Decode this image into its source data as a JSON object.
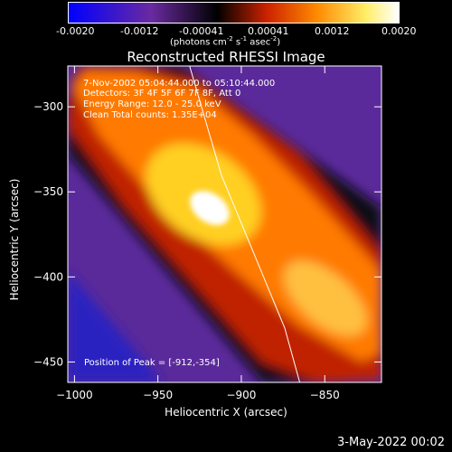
{
  "figure": {
    "footer_date": "3-May-2022 00:02"
  },
  "colorbar": {
    "ticks": [
      "-0.0020",
      "-0.0012",
      "-0.00041",
      "0.00041",
      "0.0012",
      "0.0020"
    ],
    "unit_label": "(photons cm",
    "unit_exp1": "-2",
    "unit_mid": " s",
    "unit_exp2": "-1",
    "unit_mid2": " asec",
    "unit_exp3": "-2",
    "unit_end": ")",
    "range": [
      -0.002,
      0.002
    ],
    "colormap": [
      "#0000ff",
      "#6a2aa0",
      "#000000",
      "#cc2200",
      "#ff8800",
      "#ffee66",
      "#ffffff"
    ]
  },
  "chart_data": {
    "type": "heatmap",
    "title": "Reconstructed RHESSI Image",
    "xlabel": "Heliocentric X (arcsec)",
    "ylabel": "Heliocentric Y (arcsec)",
    "xlim": [
      -1004,
      -816
    ],
    "ylim": [
      -462,
      -276
    ],
    "xticks": [
      -1000,
      -950,
      -900,
      -850
    ],
    "xtick_labels": [
      "−1000",
      "−950",
      "−900",
      "−850"
    ],
    "yticks": [
      -450,
      -400,
      -350,
      -300
    ],
    "ytick_labels": [
      "−450",
      "−400",
      "−350",
      "−300"
    ],
    "annotations": [
      "7-Nov-2002 05:04:44.000 to 05:10:44.000",
      "Detectors: 3F 4F 5F 6F 7F 8F, Att 0",
      "Energy Range: 12.0 - 25.0 keV",
      "Clean     Total counts: 1.35E+04"
    ],
    "peak_label": "Position of Peak = [-912,-354]",
    "peak": [
      -912,
      -354
    ],
    "limb_line": [
      [
        -931,
        -276
      ],
      [
        -912,
        -340
      ],
      [
        -874,
        -430
      ],
      [
        -865,
        -462
      ]
    ]
  }
}
